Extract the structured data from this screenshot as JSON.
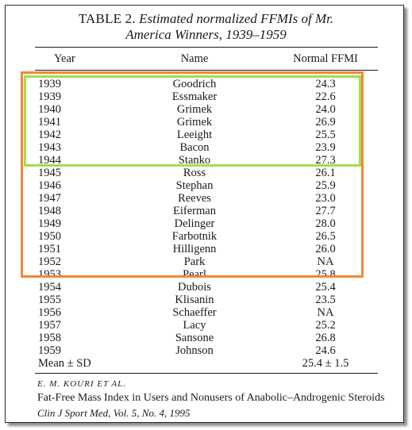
{
  "table": {
    "title_lead": "TABLE 2.",
    "title_line1_rest": "Estimated normalized FFMIs of Mr.",
    "title_line2": "America Winners, 1939–1959",
    "headers": {
      "year": "Year",
      "name": "Name",
      "ffmi": "Normal FFMI"
    },
    "rows": [
      {
        "year": "1939",
        "name": "Goodrich",
        "ffmi": "24.3"
      },
      {
        "year": "1939",
        "name": "Essmaker",
        "ffmi": "22.6"
      },
      {
        "year": "1940",
        "name": "Grimek",
        "ffmi": "24.0"
      },
      {
        "year": "1941",
        "name": "Grimek",
        "ffmi": "26.9"
      },
      {
        "year": "1942",
        "name": "Leeight",
        "ffmi": "25.5"
      },
      {
        "year": "1943",
        "name": "Bacon",
        "ffmi": "23.9"
      },
      {
        "year": "1944",
        "name": "Stanko",
        "ffmi": "27.3"
      },
      {
        "year": "1945",
        "name": "Ross",
        "ffmi": "26.1"
      },
      {
        "year": "1946",
        "name": "Stephan",
        "ffmi": "25.9"
      },
      {
        "year": "1947",
        "name": "Reeves",
        "ffmi": "23.0"
      },
      {
        "year": "1948",
        "name": "Eiferman",
        "ffmi": "27.7"
      },
      {
        "year": "1949",
        "name": "Delinger",
        "ffmi": "28.0"
      },
      {
        "year": "1950",
        "name": "Farbotnik",
        "ffmi": "26.5"
      },
      {
        "year": "1951",
        "name": "Hilligenn",
        "ffmi": "26.0"
      },
      {
        "year": "1952",
        "name": "Park",
        "ffmi": "NA"
      },
      {
        "year": "1953",
        "name": "Pearl",
        "ffmi": "25.8"
      },
      {
        "year": "1954",
        "name": "Dubois",
        "ffmi": "25.4"
      },
      {
        "year": "1955",
        "name": "Klisanin",
        "ffmi": "23.5"
      },
      {
        "year": "1956",
        "name": "Schaeffer",
        "ffmi": "NA"
      },
      {
        "year": "1957",
        "name": "Lacy",
        "ffmi": "25.2"
      },
      {
        "year": "1958",
        "name": "Sansone",
        "ffmi": "26.8"
      },
      {
        "year": "1959",
        "name": "Johnson",
        "ffmi": "24.6"
      }
    ],
    "summary": {
      "label": "Mean ± SD",
      "value": "25.4 ± 1.5"
    }
  },
  "highlights": {
    "orange_color": "#f0883a",
    "green_color": "#a8dc4a"
  },
  "citation": {
    "author": "E. M. KOURI ET AL.",
    "article": "Fat-Free Mass Index in Users and Nonusers of  Anabolic–Androgenic Steroids",
    "journal": "Clin J Sport Med, Vol. 5, No. 4, 1995"
  }
}
